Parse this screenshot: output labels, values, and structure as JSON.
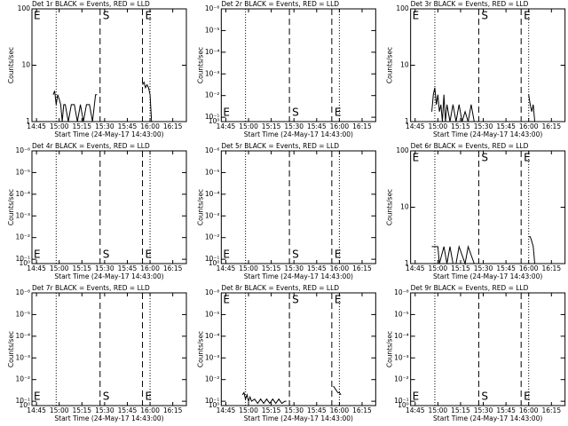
{
  "chart_data": [
    {
      "type": "line",
      "title": "Det 1r BLACK = Events, RED = LLD",
      "ylabel": "Counts/sec",
      "xlabel": "Start Time (24-May-17 14:43:00)",
      "xlim": [
        882,
        984
      ],
      "xticks": [
        {
          "value": 885,
          "label": "14:45"
        },
        {
          "value": 900,
          "label": "15:00"
        },
        {
          "value": 915,
          "label": "15:15"
        },
        {
          "value": 930,
          "label": "15:30"
        },
        {
          "value": 945,
          "label": "15:45"
        },
        {
          "value": 960,
          "label": "16:00"
        },
        {
          "value": 975,
          "label": "16:15"
        }
      ],
      "log": true,
      "ylim": [
        1,
        100
      ],
      "yticks": [
        1,
        10,
        100
      ],
      "vlines": [
        {
          "x": 898,
          "style": "dotted"
        },
        {
          "x": 927,
          "style": "dashed"
        },
        {
          "x": 955,
          "style": "dashed"
        },
        {
          "x": 960,
          "style": "dotted"
        }
      ],
      "annotations": [
        "E",
        "S",
        "E"
      ],
      "annotation_pos": "top",
      "series": [
        {
          "color": "#000000",
          "x": [
            896,
            897,
            898,
            899,
            900,
            901,
            902,
            903,
            904,
            906,
            908,
            910,
            912,
            914,
            916,
            918,
            920,
            922,
            924,
            925,
            926,
            955,
            956,
            957,
            958,
            959,
            960,
            961,
            962
          ],
          "values": [
            3,
            3.5,
            2,
            3,
            2.5,
            2,
            1,
            2,
            2,
            1,
            2,
            2,
            1,
            2,
            1,
            2,
            2,
            1,
            3,
            3,
            null,
            4.5,
            5,
            4,
            4.5,
            4,
            3,
            1,
            1
          ]
        }
      ]
    },
    {
      "type": "line",
      "title": "Det 2r BLACK = Events, RED = LLD",
      "ylabel": "Counts/sec",
      "xlabel": "Start Time (24-May-17 14:43:00)",
      "xlim": [
        882,
        984
      ],
      "xticks": [
        {
          "value": 885,
          "label": "14:45"
        },
        {
          "value": 900,
          "label": "15:00"
        },
        {
          "value": 915,
          "label": "15:15"
        },
        {
          "value": 930,
          "label": "15:30"
        },
        {
          "value": 945,
          "label": "15:45"
        },
        {
          "value": 960,
          "label": "16:00"
        },
        {
          "value": 975,
          "label": "16:15"
        }
      ],
      "log": false,
      "ylim": [
        0,
        5.2
      ],
      "yticks": [
        {
          "value": 0,
          "label": "10⁰"
        },
        {
          "value": 0.2,
          "label": "10⁻¹"
        },
        {
          "value": 1.2,
          "label": "10⁻²"
        },
        {
          "value": 2.2,
          "label": "10⁻³"
        },
        {
          "value": 3.2,
          "label": "10⁻⁴"
        },
        {
          "value": 4.2,
          "label": "10⁻⁵"
        },
        {
          "value": 5.2,
          "label": "10⁻⁶"
        }
      ],
      "vlines": [
        {
          "x": 898,
          "style": "dotted"
        },
        {
          "x": 927,
          "style": "dashed"
        },
        {
          "x": 955,
          "style": "dashed"
        },
        {
          "x": 960,
          "style": "dotted"
        }
      ],
      "annotations": [
        "E",
        "S",
        "E"
      ],
      "annotation_pos": "bottom"
    },
    {
      "type": "line",
      "title": "Det 3r BLACK = Events, RED = LLD",
      "ylabel": "Counts/sec",
      "xlabel": "Start Time (24-May-17 14:43:00)",
      "xlim": [
        882,
        984
      ],
      "xticks": [
        {
          "value": 885,
          "label": "14:45"
        },
        {
          "value": 900,
          "label": "15:00"
        },
        {
          "value": 915,
          "label": "15:15"
        },
        {
          "value": 930,
          "label": "15:30"
        },
        {
          "value": 945,
          "label": "15:45"
        },
        {
          "value": 960,
          "label": "16:00"
        },
        {
          "value": 975,
          "label": "16:15"
        }
      ],
      "log": true,
      "ylim": [
        1,
        100
      ],
      "yticks": [
        1,
        10,
        100
      ],
      "vlines": [
        {
          "x": 898,
          "style": "dotted"
        },
        {
          "x": 927,
          "style": "dashed"
        },
        {
          "x": 955,
          "style": "dashed"
        },
        {
          "x": 960,
          "style": "dotted"
        }
      ],
      "annotations": [
        "E",
        "S",
        "E"
      ],
      "annotation_pos": "top",
      "series": [
        {
          "color": "#000000",
          "x": [
            896,
            897,
            898,
            899,
            900,
            901,
            902,
            903,
            904,
            905,
            906,
            908,
            910,
            912,
            914,
            916,
            918,
            920,
            922,
            924,
            925,
            940,
            960,
            961,
            962,
            963,
            964,
            965
          ],
          "values": [
            1.5,
            3,
            4,
            2,
            3,
            1.5,
            2,
            1,
            3,
            1,
            2,
            1,
            2,
            1,
            2,
            1,
            1.5,
            1,
            2,
            1,
            1,
            null,
            3,
            2,
            1.5,
            2,
            1,
            1
          ]
        }
      ]
    },
    {
      "type": "line",
      "title": "Det 4r BLACK = Events, RED = LLD",
      "ylabel": "Counts/sec",
      "xlabel": "Start Time (24-May-17 14:43:00)",
      "xlim": [
        882,
        984
      ],
      "xticks": [
        {
          "value": 885,
          "label": "14:45"
        },
        {
          "value": 900,
          "label": "15:00"
        },
        {
          "value": 915,
          "label": "15:15"
        },
        {
          "value": 930,
          "label": "15:30"
        },
        {
          "value": 945,
          "label": "15:45"
        },
        {
          "value": 960,
          "label": "16:00"
        },
        {
          "value": 975,
          "label": "16:15"
        }
      ],
      "log": false,
      "ylim": [
        0,
        5.2
      ],
      "yticks": [
        {
          "value": 0,
          "label": "10⁰"
        },
        {
          "value": 0.2,
          "label": "10⁻¹"
        },
        {
          "value": 1.2,
          "label": "10⁻²"
        },
        {
          "value": 2.2,
          "label": "10⁻³"
        },
        {
          "value": 3.2,
          "label": "10⁻⁴"
        },
        {
          "value": 4.2,
          "label": "10⁻⁵"
        },
        {
          "value": 5.2,
          "label": "10⁻⁶"
        }
      ],
      "vlines": [
        {
          "x": 898,
          "style": "dotted"
        },
        {
          "x": 927,
          "style": "dashed"
        },
        {
          "x": 955,
          "style": "dashed"
        },
        {
          "x": 960,
          "style": "dotted"
        }
      ],
      "annotations": [
        "E",
        "S",
        "E"
      ],
      "annotation_pos": "bottom"
    },
    {
      "type": "line",
      "title": "Det 5r BLACK = Events, RED = LLD",
      "ylabel": "Counts/sec",
      "xlabel": "Start Time (24-May-17 14:43:00)",
      "xlim": [
        882,
        984
      ],
      "xticks": [
        {
          "value": 885,
          "label": "14:45"
        },
        {
          "value": 900,
          "label": "15:00"
        },
        {
          "value": 915,
          "label": "15:15"
        },
        {
          "value": 930,
          "label": "15:30"
        },
        {
          "value": 945,
          "label": "15:45"
        },
        {
          "value": 960,
          "label": "16:00"
        },
        {
          "value": 975,
          "label": "16:15"
        }
      ],
      "log": false,
      "ylim": [
        0,
        5.2
      ],
      "yticks": [
        {
          "value": 0,
          "label": "10⁰"
        },
        {
          "value": 0.2,
          "label": "10⁻¹"
        },
        {
          "value": 1.2,
          "label": "10⁻²"
        },
        {
          "value": 2.2,
          "label": "10⁻³"
        },
        {
          "value": 3.2,
          "label": "10⁻⁴"
        },
        {
          "value": 4.2,
          "label": "10⁻⁵"
        },
        {
          "value": 5.2,
          "label": "10⁻⁶"
        }
      ],
      "vlines": [
        {
          "x": 898,
          "style": "dotted"
        },
        {
          "x": 927,
          "style": "dashed"
        },
        {
          "x": 955,
          "style": "dashed"
        },
        {
          "x": 960,
          "style": "dotted"
        }
      ],
      "annotations": [
        "E",
        "S",
        "E"
      ],
      "annotation_pos": "bottom"
    },
    {
      "type": "line",
      "title": "Det 6r BLACK = Events, RED = LLD",
      "ylabel": "Counts/sec",
      "xlabel": "Start Time (24-May-17 14:43:00)",
      "xlim": [
        882,
        984
      ],
      "xticks": [
        {
          "value": 885,
          "label": "14:45"
        },
        {
          "value": 900,
          "label": "15:00"
        },
        {
          "value": 915,
          "label": "15:15"
        },
        {
          "value": 930,
          "label": "15:30"
        },
        {
          "value": 945,
          "label": "15:45"
        },
        {
          "value": 960,
          "label": "16:00"
        },
        {
          "value": 975,
          "label": "16:15"
        }
      ],
      "log": true,
      "ylim": [
        1,
        100
      ],
      "yticks": [
        1,
        10,
        100
      ],
      "vlines": [
        {
          "x": 898,
          "style": "dotted"
        },
        {
          "x": 927,
          "style": "dashed"
        },
        {
          "x": 955,
          "style": "dashed"
        },
        {
          "x": 960,
          "style": "dotted"
        }
      ],
      "annotations": [
        "E",
        "S",
        "E"
      ],
      "annotation_pos": "top",
      "series": [
        {
          "color": "#000000",
          "x": [
            896,
            900,
            901,
            904,
            906,
            908,
            910,
            912,
            914,
            918,
            920,
            924,
            925,
            940,
            960,
            961,
            962,
            963,
            964,
            965
          ],
          "values": [
            2,
            2,
            1,
            2,
            1,
            2,
            1,
            1,
            2,
            1,
            2,
            1,
            1,
            null,
            3,
            3,
            2.5,
            2,
            1,
            1
          ]
        }
      ]
    },
    {
      "type": "line",
      "title": "Det 7r BLACK = Events, RED = LLD",
      "ylabel": "Counts/sec",
      "xlabel": "Start Time (24-May-17 14:43:00)",
      "xlim": [
        882,
        984
      ],
      "xticks": [
        {
          "value": 885,
          "label": "14:45"
        },
        {
          "value": 900,
          "label": "15:00"
        },
        {
          "value": 915,
          "label": "15:15"
        },
        {
          "value": 930,
          "label": "15:30"
        },
        {
          "value": 945,
          "label": "15:45"
        },
        {
          "value": 960,
          "label": "16:00"
        },
        {
          "value": 975,
          "label": "16:15"
        }
      ],
      "log": false,
      "ylim": [
        0,
        5.2
      ],
      "yticks": [
        {
          "value": 0,
          "label": "10⁰"
        },
        {
          "value": 0.2,
          "label": "10⁻¹"
        },
        {
          "value": 1.2,
          "label": "10⁻²"
        },
        {
          "value": 2.2,
          "label": "10⁻³"
        },
        {
          "value": 3.2,
          "label": "10⁻⁴"
        },
        {
          "value": 4.2,
          "label": "10⁻⁵"
        },
        {
          "value": 5.2,
          "label": "10⁻⁶"
        }
      ],
      "vlines": [
        {
          "x": 898,
          "style": "dotted"
        },
        {
          "x": 927,
          "style": "dashed"
        },
        {
          "x": 955,
          "style": "dashed"
        },
        {
          "x": 960,
          "style": "dotted"
        }
      ],
      "annotations": [
        "E",
        "S",
        "E"
      ],
      "annotation_pos": "bottom"
    },
    {
      "type": "line",
      "title": "Det 8r BLACK = Events, RED = LLD",
      "ylabel": "Counts/sec",
      "xlabel": "Start Time (24-May-17 14:43:00)",
      "xlim": [
        882,
        984
      ],
      "xticks": [
        {
          "value": 885,
          "label": "14:45"
        },
        {
          "value": 900,
          "label": "15:00"
        },
        {
          "value": 915,
          "label": "15:15"
        },
        {
          "value": 930,
          "label": "15:30"
        },
        {
          "value": 945,
          "label": "15:45"
        },
        {
          "value": 960,
          "label": "16:00"
        },
        {
          "value": 975,
          "label": "16:15"
        }
      ],
      "log": false,
      "ylim": [
        0,
        5.2
      ],
      "yticks": [
        {
          "value": 0,
          "label": "10⁰"
        },
        {
          "value": 0.2,
          "label": "10⁻¹"
        },
        {
          "value": 1.2,
          "label": "10⁻²"
        },
        {
          "value": 2.2,
          "label": "10⁻³"
        },
        {
          "value": 3.2,
          "label": "10⁻⁴"
        },
        {
          "value": 4.2,
          "label": "10⁻⁵"
        },
        {
          "value": 5.2,
          "label": "10⁻⁶"
        }
      ],
      "vlines": [
        {
          "x": 898,
          "style": "dotted"
        },
        {
          "x": 927,
          "style": "dashed"
        },
        {
          "x": 955,
          "style": "dashed"
        },
        {
          "x": 960,
          "style": "dotted"
        }
      ],
      "annotations": [
        "E",
        "S",
        "E"
      ],
      "annotation_pos": "top",
      "series": [
        {
          "color": "#000000",
          "x": [
            896,
            897,
            898,
            899,
            900,
            901,
            902,
            904,
            906,
            908,
            910,
            912,
            914,
            916,
            918,
            920,
            922,
            924,
            925,
            940,
            956,
            957,
            958,
            959,
            960,
            961
          ],
          "values": [
            0.5,
            0.6,
            0.3,
            0.5,
            0.2,
            0.4,
            0.2,
            0.3,
            0.1,
            0.3,
            0.1,
            0.3,
            0.1,
            0.3,
            0.1,
            0.3,
            0.1,
            0.2,
            0.2,
            null,
            0.9,
            0.8,
            0.7,
            0.6,
            0.6,
            0.5
          ]
        }
      ]
    },
    {
      "type": "line",
      "title": "Det 9r BLACK = Events, RED = LLD",
      "ylabel": "Counts/sec",
      "xlabel": "Start Time (24-May-17 14:43:00)",
      "xlim": [
        882,
        984
      ],
      "xticks": [
        {
          "value": 885,
          "label": "14:45"
        },
        {
          "value": 900,
          "label": "15:00"
        },
        {
          "value": 915,
          "label": "15:15"
        },
        {
          "value": 930,
          "label": "15:30"
        },
        {
          "value": 945,
          "label": "15:45"
        },
        {
          "value": 960,
          "label": "16:00"
        },
        {
          "value": 975,
          "label": "16:15"
        }
      ],
      "log": false,
      "ylim": [
        0,
        5.2
      ],
      "yticks": [
        {
          "value": 0,
          "label": "10⁰"
        },
        {
          "value": 0.2,
          "label": "10⁻¹"
        },
        {
          "value": 1.2,
          "label": "10⁻²"
        },
        {
          "value": 2.2,
          "label": "10⁻³"
        },
        {
          "value": 3.2,
          "label": "10⁻⁴"
        },
        {
          "value": 4.2,
          "label": "10⁻⁵"
        },
        {
          "value": 5.2,
          "label": "10⁻⁶"
        }
      ],
      "vlines": [
        {
          "x": 898,
          "style": "dotted"
        },
        {
          "x": 927,
          "style": "dashed"
        },
        {
          "x": 955,
          "style": "dashed"
        },
        {
          "x": 960,
          "style": "dotted"
        }
      ],
      "annotations": [
        "E",
        "S",
        "E"
      ],
      "annotation_pos": "bottom"
    }
  ]
}
